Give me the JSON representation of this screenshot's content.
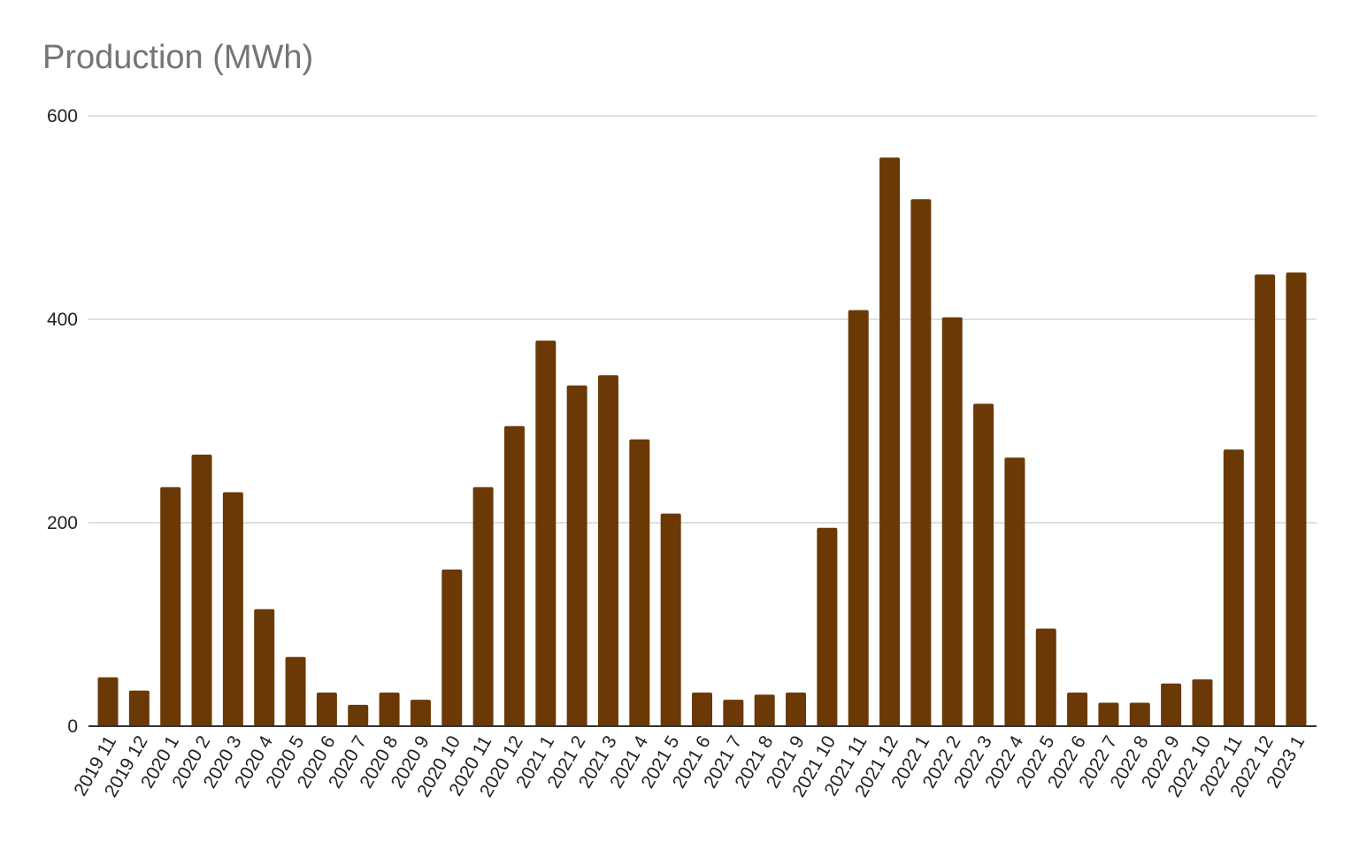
{
  "colors": {
    "bar": "#6a3906",
    "grid": "#cccccc",
    "title": "#757575"
  },
  "chart_data": {
    "type": "bar",
    "title": "Production (MWh)",
    "xlabel": "",
    "ylabel": "",
    "ylim": [
      0,
      600
    ],
    "yticks": [
      0,
      200,
      400,
      600
    ],
    "grid": true,
    "legend": "none",
    "categories": [
      "2019 11",
      "2019 12",
      "2020 1",
      "2020 2",
      "2020 3",
      "2020 4",
      "2020 5",
      "2020 6",
      "2020 7",
      "2020 8",
      "2020 9",
      "2020 10",
      "2020 11",
      "2020 12",
      "2021 1",
      "2021 2",
      "2021 3",
      "2021 4",
      "2021 5",
      "2021 6",
      "2021 7",
      "2021 8",
      "2021 9",
      "2021 10",
      "2021 11",
      "2021 12",
      "2022 1",
      "2022 2",
      "2022 3",
      "2022 4",
      "2022 5",
      "2022 6",
      "2022 7",
      "2022 8",
      "2022 9",
      "2022 10",
      "2022 11",
      "2022 12",
      "2023 1"
    ],
    "values": [
      48,
      35,
      235,
      267,
      230,
      115,
      68,
      33,
      21,
      33,
      26,
      154,
      235,
      295,
      379,
      335,
      345,
      282,
      209,
      33,
      26,
      31,
      33,
      195,
      409,
      559,
      518,
      402,
      317,
      264,
      96,
      33,
      23,
      23,
      42,
      46,
      272,
      444,
      446
    ]
  }
}
